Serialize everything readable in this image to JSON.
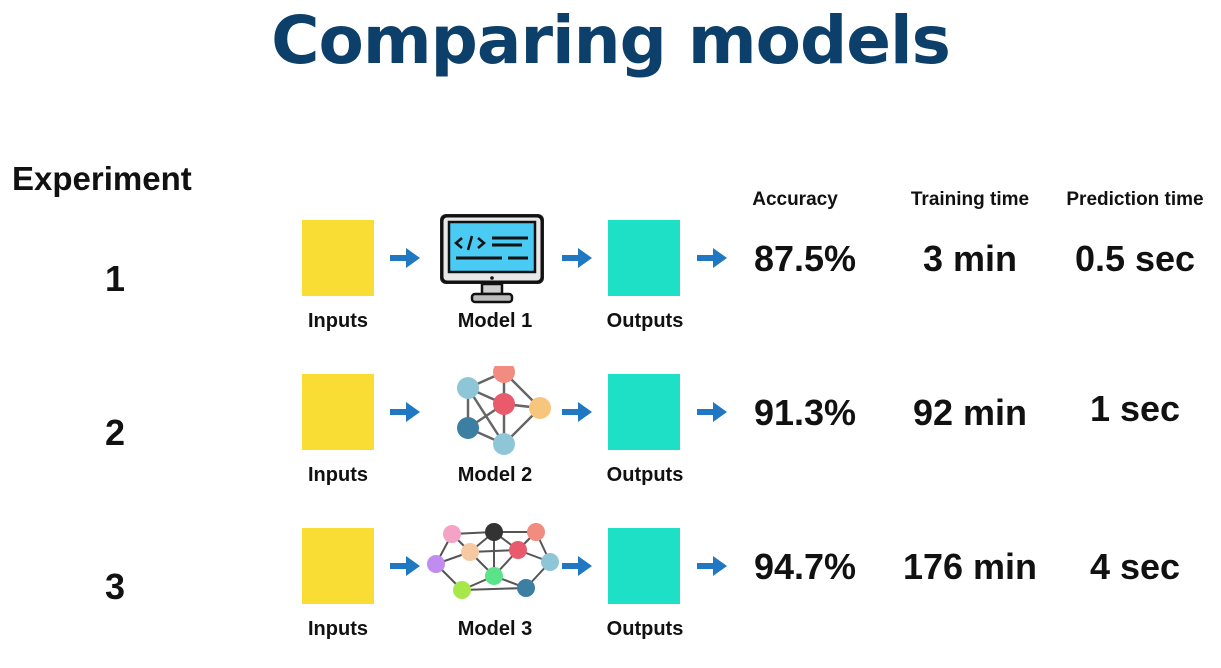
{
  "title": "Comparing models",
  "experiment_heading": "Experiment",
  "columns": {
    "accuracy": "Accuracy",
    "training_time": "Training time",
    "prediction_time": "Prediction time"
  },
  "colors": {
    "title": "#0c3f69",
    "inputs": "#f9dd35",
    "outputs": "#1ee0c7",
    "arrow": "#1f78c1"
  },
  "rows": [
    {
      "num": "1",
      "inputs_label": "Inputs",
      "model_label": "Model 1",
      "outputs_label": "Outputs",
      "accuracy": "87.5%",
      "training_time": "3 min",
      "prediction_time": "0.5 sec",
      "icon": "computer-code-icon"
    },
    {
      "num": "2",
      "inputs_label": "Inputs",
      "model_label": "Model 2",
      "outputs_label": "Outputs",
      "accuracy": "91.3%",
      "training_time": "92 min",
      "prediction_time": "1 sec",
      "icon": "small-network-icon"
    },
    {
      "num": "3",
      "inputs_label": "Inputs",
      "model_label": "Model 3",
      "outputs_label": "Outputs",
      "accuracy": "94.7%",
      "training_time": "176 min",
      "prediction_time": "4 sec",
      "icon": "large-network-icon"
    }
  ]
}
